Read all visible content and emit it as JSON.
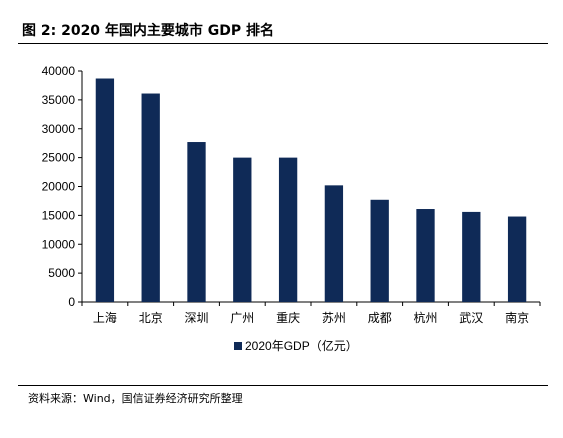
{
  "figure": {
    "title": "图 2:  2020 年国内主要城市 GDP 排名",
    "source": "资料来源：Wind，国信证券经济研究所整理"
  },
  "chart_data": {
    "type": "bar",
    "title": "",
    "xlabel": "",
    "ylabel": "",
    "categories": [
      "上海",
      "北京",
      "深圳",
      "广州",
      "重庆",
      "苏州",
      "成都",
      "杭州",
      "武汉",
      "南京"
    ],
    "series": [
      {
        "name": "2020年GDP（亿元）",
        "values": [
          38700,
          36100,
          27700,
          25000,
          25000,
          20200,
          17700,
          16100,
          15600,
          14800
        ],
        "color": "#0f2a57"
      }
    ],
    "ylim": [
      0,
      40000
    ],
    "yticks": [
      0,
      5000,
      10000,
      15000,
      20000,
      25000,
      30000,
      35000,
      40000
    ],
    "grid": false,
    "legend_position": "bottom"
  }
}
